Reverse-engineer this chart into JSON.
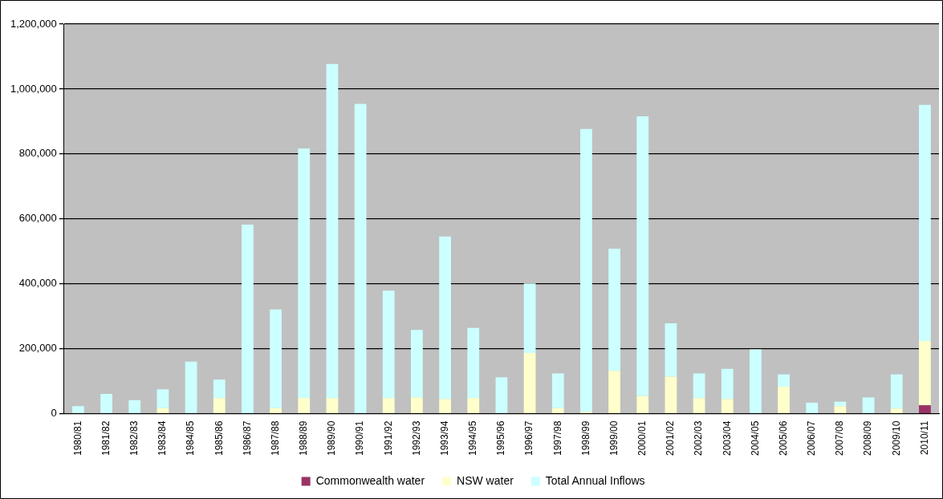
{
  "chart_data": {
    "type": "bar",
    "stacked": true,
    "categories": [
      "1980/81",
      "1981/82",
      "1982/83",
      "1983/84",
      "1984/85",
      "1985/86",
      "1986/87",
      "1987/88",
      "1988/89",
      "1989/90",
      "1990/91",
      "1991/92",
      "1992/93",
      "1993/94",
      "1994/95",
      "1995/96",
      "1996/97",
      "1997/98",
      "1998/99",
      "1999/00",
      "2000/01",
      "2001/02",
      "2002/03",
      "2003/04",
      "2004/05",
      "2005/06",
      "2006/07",
      "2007/08",
      "2008/09",
      "2009/10",
      "2010/11"
    ],
    "series": [
      {
        "name": "Commonwealth water",
        "color": "#993366",
        "values": [
          0,
          0,
          0,
          0,
          0,
          0,
          0,
          0,
          0,
          0,
          0,
          0,
          0,
          0,
          0,
          0,
          0,
          0,
          0,
          0,
          0,
          0,
          0,
          0,
          0,
          0,
          0,
          0,
          0,
          0,
          26000
        ]
      },
      {
        "name": "NSW water",
        "color": "#ffffcc",
        "values": [
          0,
          0,
          0,
          17000,
          0,
          48000,
          0,
          17000,
          48000,
          48000,
          0,
          48000,
          50000,
          45000,
          48000,
          null,
          187000,
          17000,
          6000,
          132000,
          54000,
          114000,
          48000,
          45000,
          0,
          83000,
          0,
          23000,
          0,
          16000,
          198000
        ]
      },
      {
        "name": "Total Annual Inflows",
        "color": "#ccffff",
        "values": [
          23000,
          61000,
          42000,
          58000,
          160000,
          57000,
          582000,
          304000,
          769000,
          1029000,
          954000,
          331000,
          208000,
          501000,
          216000,
          112000,
          214000,
          107000,
          871000,
          376000,
          862000,
          164000,
          76000,
          93000,
          198000,
          38000,
          34000,
          14000,
          50000,
          105000,
          727000
        ]
      }
    ],
    "ylim": [
      0,
      1200000
    ],
    "yticks": [
      0,
      {
        "value": 200000,
        "label": "200,000"
      },
      {
        "value": 400000,
        "label": "400,000"
      },
      {
        "value": 600000,
        "label": "600,000"
      },
      {
        "value": 800000,
        "label": "800,000"
      },
      {
        "value": 1000000,
        "label": "1,000,000"
      },
      {
        "value": 1200000,
        "label": "1,200,000"
      }
    ],
    "grid": "y",
    "legend": "bottom"
  }
}
